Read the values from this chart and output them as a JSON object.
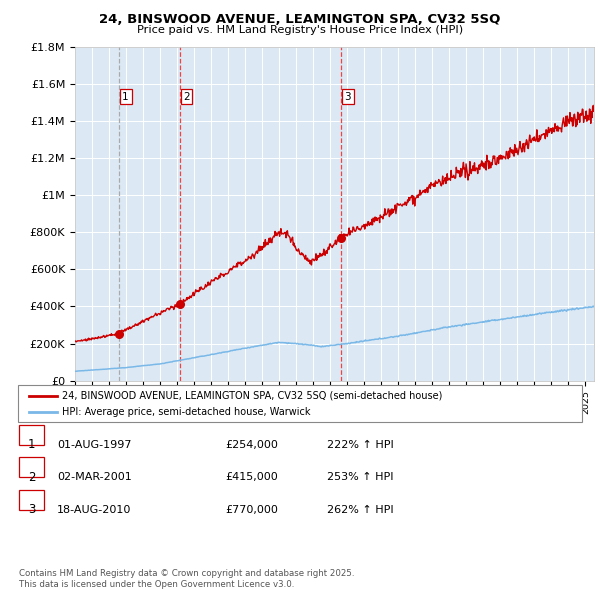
{
  "title1": "24, BINSWOOD AVENUE, LEAMINGTON SPA, CV32 5SQ",
  "title2": "Price paid vs. HM Land Registry's House Price Index (HPI)",
  "background_color": "#ffffff",
  "plot_bg_color": "#dce9f5",
  "grid_color": "#ffffff",
  "sale_dates": [
    1997.58,
    2001.16,
    2010.63
  ],
  "sale_prices": [
    254000,
    415000,
    770000
  ],
  "sale_labels": [
    "1",
    "2",
    "3"
  ],
  "hpi_line_color": "#7ab8e8",
  "price_line_color": "#cc0000",
  "dashed_line_color_1": "#aaaaaa",
  "dashed_line_color_2": "#ee4444",
  "legend_label_red": "24, BINSWOOD AVENUE, LEAMINGTON SPA, CV32 5SQ (semi-detached house)",
  "legend_label_blue": "HPI: Average price, semi-detached house, Warwick",
  "table_rows": [
    [
      "1",
      "01-AUG-1997",
      "£254,000",
      "222% ↑ HPI"
    ],
    [
      "2",
      "02-MAR-2001",
      "£415,000",
      "253% ↑ HPI"
    ],
    [
      "3",
      "18-AUG-2010",
      "£770,000",
      "262% ↑ HPI"
    ]
  ],
  "footnote": "Contains HM Land Registry data © Crown copyright and database right 2025.\nThis data is licensed under the Open Government Licence v3.0.",
  "xmin": 1995,
  "xmax": 2025.5,
  "ymin": 0,
  "ymax": 1800000,
  "yticks": [
    0,
    200000,
    400000,
    600000,
    800000,
    1000000,
    1200000,
    1400000,
    1600000,
    1800000
  ],
  "ylabels": [
    "£0",
    "£200K",
    "£400K",
    "£600K",
    "£800K",
    "£1M",
    "£1.2M",
    "£1.4M",
    "£1.6M",
    "£1.8M"
  ]
}
